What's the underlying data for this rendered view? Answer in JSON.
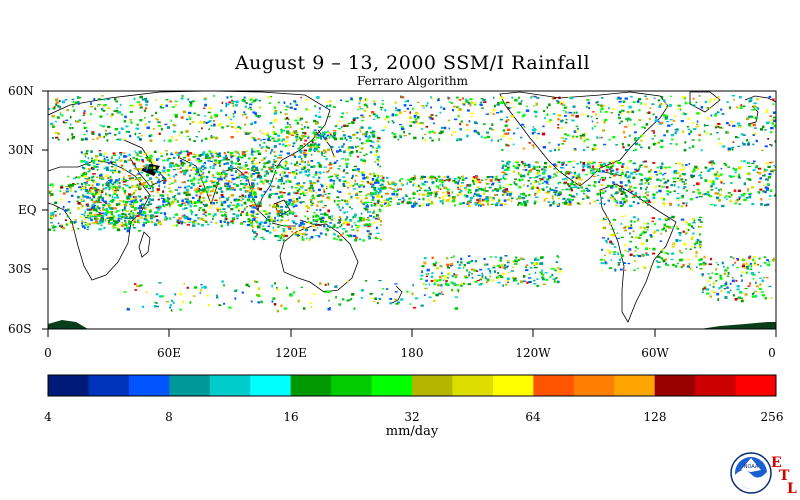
{
  "title": "August 9 – 13, 2000 SSM/I Rainfall",
  "subtitle": "Ferraro Algorithm",
  "y_labels": [
    "60N",
    "30N",
    "EQ",
    "30S",
    "60S"
  ],
  "x_labels": [
    "0",
    "60E",
    "120E",
    "180",
    "120W",
    "60W",
    "0"
  ],
  "colorbar": {
    "colors": [
      "#001a7a",
      "#0033bb",
      "#0055ff",
      "#00999a",
      "#00cccc",
      "#00ffff",
      "#009900",
      "#00cc00",
      "#00ff00",
      "#b5b500",
      "#dddd00",
      "#ffff00",
      "#ff5500",
      "#ff8000",
      "#ffa500",
      "#990000",
      "#cc0000",
      "#ff0000"
    ],
    "tick_labels": [
      "4",
      "8",
      "16",
      "32",
      "64",
      "128",
      "256"
    ],
    "units": "mm/day"
  },
  "logo": {
    "text": "NOAA",
    "letters": [
      "E",
      "T",
      "L"
    ]
  }
}
